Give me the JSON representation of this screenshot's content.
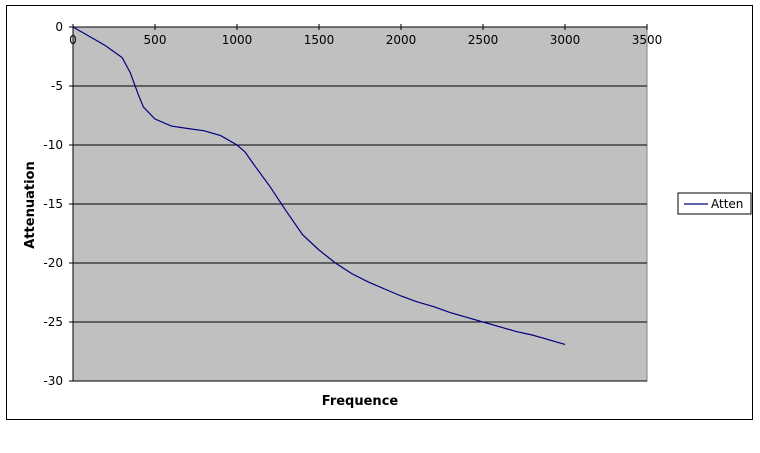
{
  "chart_data": {
    "type": "line",
    "title": "",
    "xlabel": "Frequence",
    "ylabel": "Attenuation",
    "xlim": [
      0,
      3500
    ],
    "ylim": [
      -30,
      0
    ],
    "xticks": [
      0,
      500,
      1000,
      1500,
      2000,
      2500,
      3000,
      3500
    ],
    "yticks": [
      0,
      -5,
      -10,
      -15,
      -20,
      -25,
      -30
    ],
    "x_axis_position": "top",
    "grid": "horizontal",
    "plot_background": "#c0c0c0",
    "line_color": "#000080",
    "legend": {
      "position": "right",
      "entries": [
        "Atten"
      ]
    },
    "series": [
      {
        "name": "Atten",
        "x": [
          0,
          100,
          200,
          300,
          350,
          400,
          430,
          500,
          600,
          700,
          800,
          900,
          1000,
          1050,
          1100,
          1200,
          1300,
          1400,
          1500,
          1600,
          1700,
          1800,
          1900,
          2000,
          2100,
          2200,
          2300,
          2400,
          2500,
          2600,
          2700,
          2800,
          2900,
          3000
        ],
        "y": [
          0,
          -0.8,
          -1.6,
          -2.6,
          -3.9,
          -5.8,
          -6.8,
          -7.8,
          -8.4,
          -8.6,
          -8.8,
          -9.2,
          -10.0,
          -10.6,
          -11.6,
          -13.5,
          -15.6,
          -17.6,
          -18.9,
          -20.0,
          -20.9,
          -21.6,
          -22.2,
          -22.8,
          -23.3,
          -23.7,
          -24.2,
          -24.6,
          -25.0,
          -25.4,
          -25.8,
          -26.1,
          -26.5,
          -26.9
        ]
      }
    ]
  }
}
